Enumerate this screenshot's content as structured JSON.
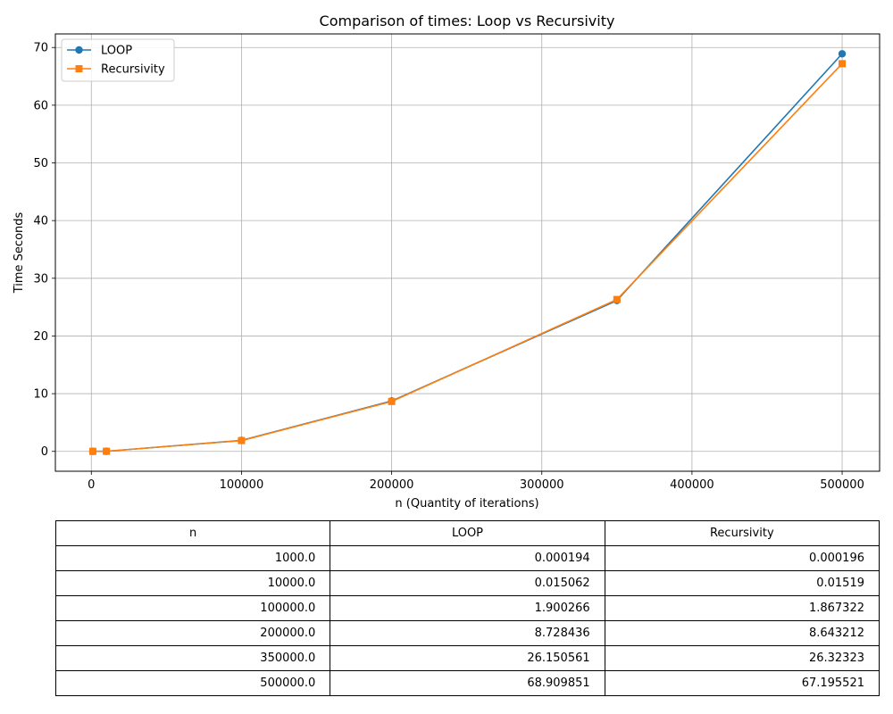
{
  "chart_data": {
    "type": "line",
    "title": "Comparison of times: Loop vs Recursivity",
    "xlabel": "n (Quantity of iterations)",
    "ylabel": "Time Seconds",
    "x": [
      1000,
      10000,
      100000,
      200000,
      350000,
      500000
    ],
    "series": [
      {
        "name": "LOOP",
        "values": [
          0.000194,
          0.015062,
          1.900266,
          8.728436,
          26.150561,
          68.909851
        ],
        "color": "#1f77b4",
        "marker": "circle"
      },
      {
        "name": "Recursivity",
        "values": [
          0.000196,
          0.01519,
          1.867322,
          8.643212,
          26.32323,
          67.195521
        ],
        "color": "#ff7f0e",
        "marker": "square"
      }
    ],
    "xlim": [
      -23950,
      524950
    ],
    "ylim": [
      -3.445,
      72.355
    ],
    "xticks": [
      0,
      100000,
      200000,
      300000,
      400000,
      500000
    ],
    "yticks": [
      0,
      10,
      20,
      30,
      40,
      50,
      60,
      70
    ],
    "grid": true,
    "legend": "top-left"
  },
  "table": {
    "headers": [
      "n",
      "LOOP",
      "Recursivity"
    ],
    "rows": [
      [
        "1000.0",
        "0.000194",
        "0.000196"
      ],
      [
        "10000.0",
        "0.015062",
        "0.01519"
      ],
      [
        "100000.0",
        "1.900266",
        "1.867322"
      ],
      [
        "200000.0",
        "8.728436",
        "8.643212"
      ],
      [
        "350000.0",
        "26.150561",
        "26.32323"
      ],
      [
        "500000.0",
        "68.909851",
        "67.195521"
      ]
    ]
  }
}
